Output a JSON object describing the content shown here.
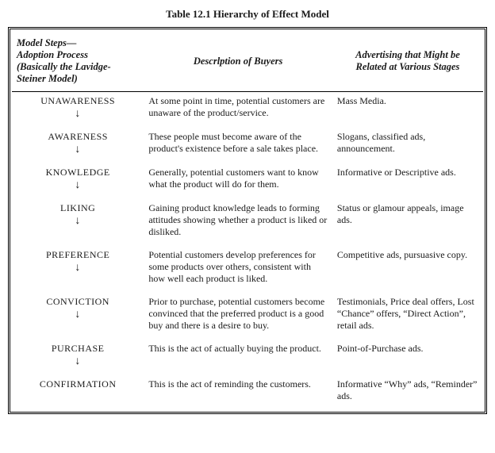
{
  "title": "Table 12.1  Hierarchy of Effect Model",
  "headers": {
    "col1_line1": "Model Steps—",
    "col1_line2": "Adoption Process",
    "col1_line3": "(Basically the Lavidge-",
    "col1_line4": "Steiner Model)",
    "col2": "Descrlption of Buyers",
    "col3_line1": "Advertising that Might be",
    "col3_line2": "Related at Various Stages"
  },
  "rows": [
    {
      "step": "UNAWARENESS",
      "arrow": true,
      "desc": "At some point in time, potential customers are unaware of the product/service.",
      "adv": "Mass Media."
    },
    {
      "step": "AWARENESS",
      "arrow": true,
      "desc": "These people must become aware of the product's existence before a sale takes place.",
      "adv": "Slogans, classified ads, announcement."
    },
    {
      "step": "KNOWLEDGE",
      "arrow": true,
      "desc": "Generally, potential customers want to know what the product will do for them.",
      "adv": "Informative or Descriptive ads."
    },
    {
      "step": "LIKING",
      "arrow": true,
      "desc": "Gaining product knowledge leads to forming attitudes showing whether a product is liked or disliked.",
      "adv": "Status or glamour appeals, image ads."
    },
    {
      "step": "PREFERENCE",
      "arrow": true,
      "desc": "Potential customers develop preferences for some products over others, consistent with how well each product is liked.",
      "adv": "Competitive ads, pursuasive copy."
    },
    {
      "step": "CONVICTION",
      "arrow": true,
      "desc": "Prior to purchase, potential customers become convinced that the preferred product is a good buy and there is a desire to buy.",
      "adv": "Testimonials, Price deal offers, Lost “Chance” offers, “Direct Action”, retail ads."
    },
    {
      "step": "PURCHASE",
      "arrow": true,
      "desc": "This is the act of actually buying the product.",
      "adv": "Point-of-Purchase ads."
    },
    {
      "step": "CONFIRMATION",
      "arrow": false,
      "desc": "This is the act of reminding the customers.",
      "adv": "Informative “Why” ads, “Reminder” ads."
    }
  ],
  "arrow_glyph": "↓"
}
